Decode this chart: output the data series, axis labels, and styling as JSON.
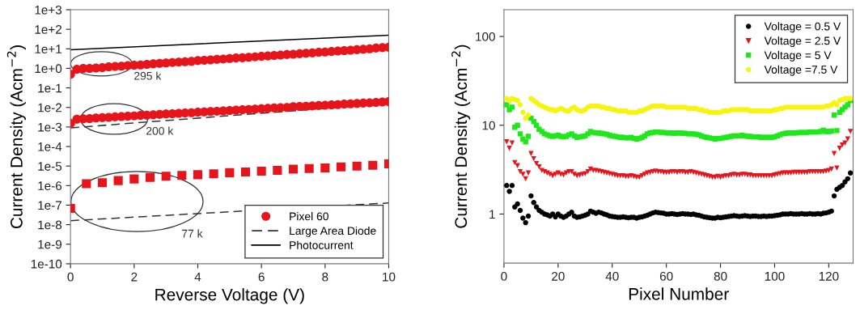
{
  "chart_data": [
    {
      "type": "scatter",
      "xlabel": "Reverse Voltage (V)",
      "ylabel": "Current Density (Acm$^{−2}$)",
      "log": "y",
      "grid": false,
      "legend": "bottom right",
      "xlim": [
        0,
        10
      ],
      "xticks": [
        0,
        2,
        4,
        6,
        8,
        10
      ],
      "ylim": [
        1e-10,
        1000
      ],
      "yticks": [
        {
          "value": 1000,
          "label": "1e+3"
        },
        {
          "value": 100,
          "label": "1e+2"
        },
        {
          "value": 10,
          "label": "1e+1"
        },
        {
          "value": 1,
          "label": "1e+0"
        },
        {
          "value": 0.1,
          "label": "1e-1"
        },
        {
          "value": 0.01,
          "label": "1e-2"
        },
        {
          "value": 0.001,
          "label": "1e-3"
        },
        {
          "value": 0.0001,
          "label": "1e-4"
        },
        {
          "value": 1e-05,
          "label": "1e-5"
        },
        {
          "value": 1e-06,
          "label": "1e-6"
        },
        {
          "value": 1e-07,
          "label": "1e-7"
        },
        {
          "value": 1e-08,
          "label": "1e-8"
        },
        {
          "value": 1e-09,
          "label": "1e-9"
        },
        {
          "value": 1e-10,
          "label": "1e-10"
        }
      ],
      "series": [
        {
          "name": "Pixel 60",
          "type": "scatter",
          "marker": "circle",
          "color": "#e8141c",
          "x": [
            0,
            0.2,
            0.4,
            0.6,
            0.8,
            1.0,
            1.2,
            1.4,
            1.6,
            1.8,
            2.0,
            2.2,
            2.4,
            2.6,
            2.8,
            3.0,
            3.2,
            3.4,
            3.6,
            3.8,
            4.0,
            4.2,
            4.4,
            4.6,
            4.8,
            5.0,
            5.2,
            5.4,
            5.6,
            5.8,
            6.0,
            6.2,
            6.4,
            6.6,
            6.8,
            7.0,
            7.2,
            7.4,
            7.6,
            7.8,
            8.0,
            8.2,
            8.4,
            8.6,
            8.8,
            9.0,
            9.2,
            9.4,
            9.6,
            9.8,
            10
          ],
          "values": [
            0.5,
            0.9,
            1.0,
            1.0,
            1.05,
            1.1,
            1.2,
            1.25,
            1.3,
            1.4,
            1.45,
            1.5,
            1.6,
            1.7,
            1.8,
            1.9,
            2.0,
            2.1,
            2.2,
            2.3,
            2.5,
            2.6,
            2.7,
            2.9,
            3.0,
            3.2,
            3.4,
            3.5,
            3.7,
            3.9,
            4.1,
            4.3,
            4.6,
            4.8,
            5.1,
            5.3,
            5.6,
            5.9,
            6.2,
            6.6,
            6.9,
            7.3,
            7.7,
            8.1,
            8.5,
            9.0,
            9.5,
            10,
            11,
            11.5,
            12
          ]
        },
        {
          "type": "scatter",
          "marker": "circle",
          "color": "#e8141c",
          "x": [
            0,
            0.2,
            0.4,
            0.6,
            0.8,
            1.0,
            1.2,
            1.4,
            1.6,
            1.8,
            2.0,
            2.2,
            2.4,
            2.6,
            2.8,
            3.0,
            3.2,
            3.4,
            3.6,
            3.8,
            4.0,
            4.2,
            4.4,
            4.6,
            4.8,
            5.0,
            5.2,
            5.4,
            5.6,
            5.8,
            6.0,
            6.2,
            6.4,
            6.6,
            6.8,
            7.0,
            7.2,
            7.4,
            7.6,
            7.8,
            8.0,
            8.2,
            8.4,
            8.6,
            8.8,
            9.0,
            9.2,
            9.4,
            9.6,
            9.8,
            10
          ],
          "values": [
            0.0015,
            0.0025,
            0.0026,
            0.0027,
            0.0029,
            0.003,
            0.0031,
            0.0033,
            0.0034,
            0.0036,
            0.0037,
            0.0039,
            0.004,
            0.0042,
            0.0044,
            0.0046,
            0.0048,
            0.005,
            0.0052,
            0.0054,
            0.0057,
            0.0059,
            0.0062,
            0.0064,
            0.0067,
            0.007,
            0.0073,
            0.0076,
            0.0079,
            0.0083,
            0.0086,
            0.009,
            0.0094,
            0.0098,
            0.01,
            0.011,
            0.0112,
            0.0116,
            0.012,
            0.0125,
            0.013,
            0.0136,
            0.014,
            0.0148,
            0.0154,
            0.016,
            0.0167,
            0.0174,
            0.018,
            0.019,
            0.02
          ]
        },
        {
          "type": "scatter",
          "marker": "square",
          "color": "#e8141c",
          "x": [
            0,
            0.5,
            1,
            1.5,
            2,
            2.5,
            3,
            3.5,
            4,
            4.5,
            5,
            5.5,
            6,
            6.5,
            7,
            7.5,
            8,
            8.5,
            9,
            9.5,
            10
          ],
          "values": [
            6.8e-08,
            1.25e-06,
            1.4e-06,
            1.8e-06,
            2.2e-06,
            2.6e-06,
            3e-06,
            3.3e-06,
            3.6e-06,
            4e-06,
            4.6e-06,
            5e-06,
            5.5e-06,
            6e-06,
            7e-06,
            7.5e-06,
            8e-06,
            9e-06,
            1e-05,
            1.1e-05,
            1.3e-05
          ]
        },
        {
          "name": "Large Area Diode",
          "type": "line",
          "line_style": "dashed",
          "color": "#333333",
          "x": [
            0,
            10
          ],
          "values": [
            0.0009,
            0.016
          ]
        },
        {
          "type": "line",
          "line_style": "dashed",
          "color": "#333333",
          "x": [
            0,
            10
          ],
          "values": [
            1.6e-08,
            1.3e-07
          ]
        },
        {
          "name": "Photocurrent",
          "type": "line",
          "line_style": "solid",
          "color": "#000000",
          "x": [
            0,
            10
          ],
          "values": [
            9,
            50
          ]
        }
      ],
      "annotations": [
        "295 k",
        "200 k",
        "77 k"
      ]
    },
    {
      "type": "scatter",
      "xlabel": "Pixel Number",
      "ylabel": "Current Density (Acm$^{−2}$)",
      "log": "y",
      "grid": false,
      "legend": "top right",
      "xlim": [
        0,
        129
      ],
      "xticks": [
        0,
        20,
        40,
        60,
        80,
        100,
        120
      ],
      "ylim": [
        0.28,
        200
      ],
      "yticks": [
        1,
        10,
        100
      ],
      "x": [
        1,
        2,
        3,
        4,
        5,
        6,
        7,
        8,
        9,
        10,
        11,
        12,
        13,
        14,
        15,
        16,
        17,
        18,
        19,
        20,
        21,
        22,
        23,
        24,
        25,
        26,
        27,
        28,
        29,
        30,
        31,
        32,
        33,
        34,
        35,
        36,
        37,
        38,
        39,
        40,
        41,
        42,
        43,
        44,
        45,
        46,
        47,
        48,
        49,
        50,
        51,
        52,
        53,
        54,
        55,
        56,
        57,
        58,
        59,
        60,
        61,
        62,
        63,
        64,
        65,
        66,
        67,
        68,
        69,
        70,
        71,
        72,
        73,
        74,
        75,
        76,
        77,
        78,
        79,
        80,
        81,
        82,
        83,
        84,
        85,
        86,
        87,
        88,
        89,
        90,
        91,
        92,
        93,
        94,
        95,
        96,
        97,
        98,
        99,
        100,
        101,
        102,
        103,
        104,
        105,
        106,
        107,
        108,
        109,
        110,
        111,
        112,
        113,
        114,
        115,
        116,
        117,
        118,
        119,
        120,
        121,
        122,
        123,
        124,
        125,
        126,
        127,
        128
      ],
      "series": [
        {
          "name": "Voltage = 0.5 V",
          "marker": "circle",
          "color": "#000000",
          "values": [
            2.1,
            1.8,
            2.1,
            1.2,
            1.3,
            1.1,
            0.9,
            0.8,
            0.95,
            1.6,
            1.35,
            1.2,
            1.1,
            1.05,
            1.0,
            0.98,
            0.95,
            1.0,
            0.93,
            1.0,
            0.95,
            0.92,
            0.95,
            1.0,
            1.05,
            0.95,
            0.92,
            0.93,
            0.95,
            0.97,
            1.0,
            1.08,
            1.05,
            1.02,
            1.05,
            1.03,
            1.0,
            0.98,
            0.95,
            0.94,
            0.93,
            0.92,
            0.92,
            0.93,
            0.92,
            0.91,
            0.92,
            0.92,
            0.9,
            0.92,
            0.93,
            0.95,
            0.97,
            1.0,
            1.03,
            1.05,
            1.04,
            1.03,
            1.02,
            1.0,
            1.0,
            1.01,
            1.0,
            0.99,
            1.0,
            1.01,
            1.0,
            1.0,
            0.99,
            1.0,
            0.98,
            0.97,
            0.95,
            0.93,
            0.92,
            0.91,
            0.9,
            0.9,
            0.92,
            0.91,
            0.92,
            0.93,
            0.94,
            0.95,
            0.96,
            0.95,
            0.94,
            0.95,
            0.96,
            0.95,
            0.94,
            0.95,
            0.95,
            0.94,
            0.94,
            0.95,
            0.94,
            0.95,
            0.95,
            0.96,
            0.97,
            0.98,
            1.0,
            1.0,
            1.0,
            1.01,
            1.0,
            1.0,
            1.0,
            1.01,
            1.0,
            1.0,
            1.01,
            1.0,
            1.0,
            1.01,
            1.0,
            1.02,
            1.03,
            1.05,
            1.08,
            1.6,
            1.9,
            2.0,
            2.1,
            2.3,
            2.5,
            2.9
          ]
        },
        {
          "name": "Voltage = 2.5 V",
          "marker": "triangle",
          "color": "#e8141c",
          "values": [
            6.5,
            5.5,
            6.3,
            3.8,
            3.5,
            3.0,
            2.8,
            2.5,
            2.9,
            4.8,
            4.2,
            3.7,
            3.4,
            3.1,
            3.0,
            2.9,
            2.8,
            2.7,
            2.8,
            2.9,
            2.8,
            2.75,
            2.9,
            3.0,
            3.0,
            2.8,
            2.7,
            2.75,
            2.8,
            2.85,
            3.0,
            3.2,
            3.1,
            3.1,
            3.05,
            3.0,
            2.95,
            2.9,
            2.85,
            2.8,
            2.75,
            2.7,
            2.7,
            2.7,
            2.65,
            2.65,
            2.7,
            2.65,
            2.6,
            2.6,
            2.7,
            2.8,
            2.9,
            2.95,
            3.0,
            3.05,
            3.0,
            3.0,
            2.95,
            2.95,
            2.95,
            3.0,
            3.0,
            2.95,
            3.0,
            3.0,
            2.95,
            2.95,
            3.0,
            2.95,
            2.9,
            2.85,
            2.8,
            2.75,
            2.7,
            2.65,
            2.6,
            2.6,
            2.65,
            2.6,
            2.65,
            2.7,
            2.7,
            2.75,
            2.8,
            2.75,
            2.75,
            2.8,
            2.8,
            2.75,
            2.75,
            2.7,
            2.7,
            2.7,
            2.7,
            2.7,
            2.7,
            2.7,
            2.7,
            2.75,
            2.8,
            2.85,
            2.9,
            2.9,
            2.9,
            2.9,
            2.95,
            2.95,
            2.95,
            2.95,
            2.95,
            2.95,
            3.0,
            3.0,
            3.0,
            3.0,
            3.0,
            3.0,
            3.05,
            3.1,
            3.2,
            4.8,
            3.3,
            5.5,
            6.0,
            6.3,
            7.0,
            8.5
          ]
        },
        {
          "name": "Voltage = 5 V",
          "marker": "square",
          "color": "#1ee81a",
          "values": [
            17,
            15,
            16,
            9.5,
            10,
            8,
            7,
            6.5,
            7.5,
            12,
            11,
            10,
            9,
            8.5,
            8,
            7.8,
            7.6,
            7.5,
            7.6,
            7.7,
            7.5,
            7.4,
            7.5,
            7.8,
            8,
            7.6,
            7.3,
            7.4,
            7.5,
            7.6,
            8.0,
            8.5,
            8.3,
            8.2,
            8.2,
            8.1,
            8.0,
            7.9,
            7.7,
            7.6,
            7.5,
            7.4,
            7.3,
            7.3,
            7.2,
            7.2,
            7.3,
            7.1,
            7.0,
            7.1,
            7.3,
            7.6,
            8.0,
            8.2,
            8.3,
            8.4,
            8.4,
            8.3,
            8.3,
            8.2,
            8.2,
            8.2,
            8.1,
            8.2,
            8.2,
            8.1,
            8.1,
            8.0,
            8.0,
            8.0,
            7.9,
            7.8,
            7.6,
            7.4,
            7.3,
            7.2,
            7.1,
            7.0,
            7.1,
            7.1,
            7.2,
            7.3,
            7.4,
            7.5,
            7.6,
            7.6,
            7.6,
            7.7,
            7.6,
            7.5,
            7.5,
            7.4,
            7.4,
            7.4,
            7.3,
            7.3,
            7.3,
            7.3,
            7.3,
            7.4,
            7.6,
            7.8,
            8.0,
            8.1,
            8.2,
            8.2,
            8.2,
            8.2,
            8.3,
            8.3,
            8.3,
            8.3,
            8.4,
            8.4,
            8.4,
            8.4,
            8.5,
            8.8,
            8.5,
            8.5,
            8.6,
            13,
            8.7,
            14,
            15,
            16,
            17,
            19
          ]
        },
        {
          "name": "Voltage =7.5 V",
          "marker": "circle",
          "color": "#f5f50f",
          "values": [
            20,
            19,
            20,
            19.5,
            19,
            17,
            14,
            12,
            13,
            20,
            19,
            18,
            17,
            16.5,
            16,
            15.5,
            15,
            15,
            14.5,
            15,
            15.5,
            15,
            14.5,
            14.5,
            15.5,
            16,
            15,
            14.5,
            14.5,
            15,
            16,
            16.5,
            16.5,
            16.5,
            16.5,
            16,
            16,
            15.5,
            15.5,
            15,
            15,
            14.5,
            14.5,
            14.5,
            14.5,
            14,
            14,
            14,
            14,
            14.5,
            14.5,
            15,
            15.5,
            16,
            16.5,
            16.5,
            16.5,
            16.5,
            16.5,
            16,
            16,
            16,
            16,
            16,
            16,
            16,
            16,
            15.5,
            15.5,
            15.5,
            15.5,
            15,
            15,
            14.5,
            14.5,
            14,
            14,
            14,
            14,
            14,
            14.5,
            14.5,
            14.5,
            15,
            15,
            15,
            15,
            15,
            15,
            15,
            14.5,
            14.5,
            14.5,
            14.5,
            14.5,
            14.5,
            14.5,
            14.5,
            14.5,
            15,
            15,
            15.5,
            15.5,
            16,
            16,
            16,
            16,
            16,
            16,
            16,
            16,
            16,
            16,
            16,
            16,
            16,
            16,
            16,
            16.5,
            16.5,
            17,
            18,
            17,
            19,
            19.5,
            20,
            20,
            20
          ]
        }
      ]
    }
  ]
}
